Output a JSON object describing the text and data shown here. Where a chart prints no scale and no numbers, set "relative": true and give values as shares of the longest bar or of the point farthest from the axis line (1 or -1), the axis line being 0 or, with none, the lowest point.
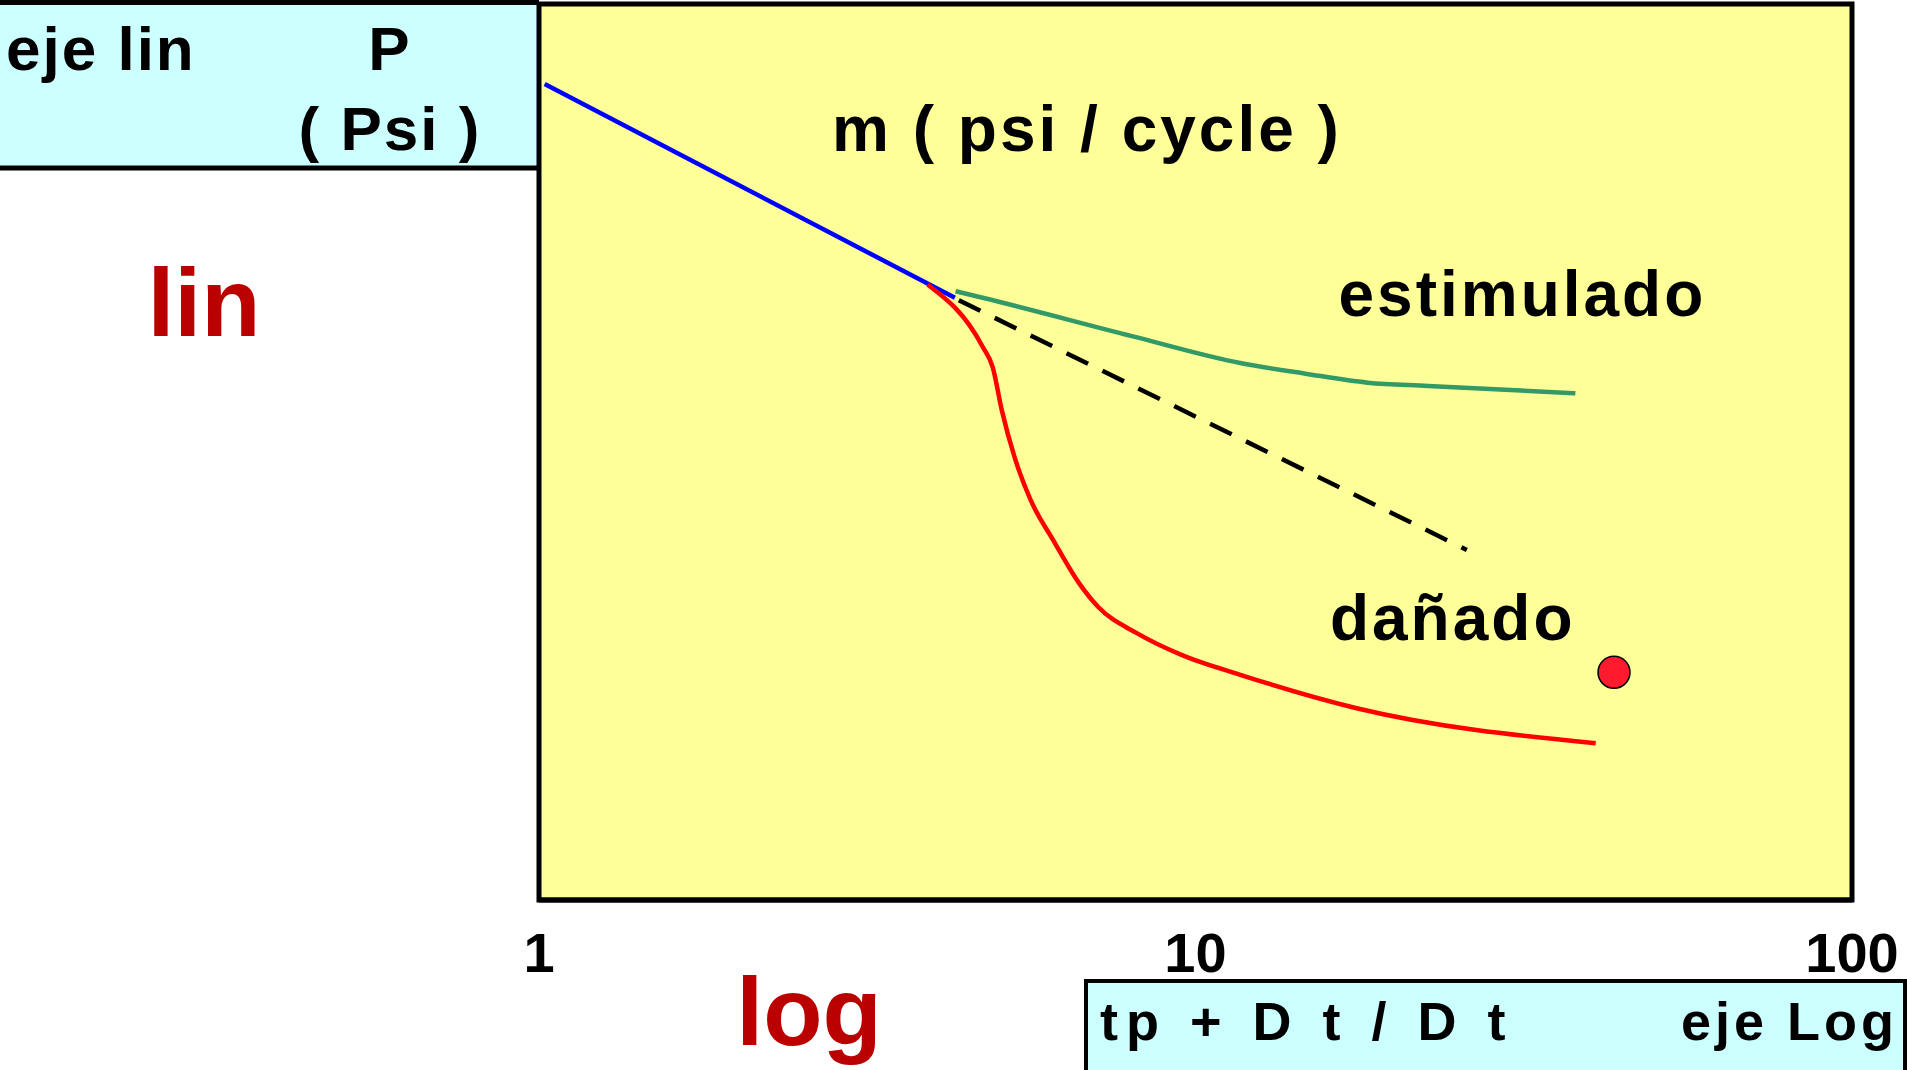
{
  "chart_data": {
    "type": "line",
    "xlabel": "tp + D t / D t",
    "ylabel": "P\n( Psi )",
    "annotations": [
      "eje lin",
      "m ( psi / cycle )",
      "lin",
      "log",
      "eje Log"
    ],
    "log": "x",
    "relative": true,
    "xlim": [
      1,
      100
    ],
    "xticks": [
      1,
      10,
      100
    ],
    "series": [
      {
        "color": "#0000ff",
        "x": [
          1.02,
          4.3
        ],
        "values": [
          1,
          0.738
        ]
      },
      {
        "name": "estimulado",
        "color": "#339966",
        "x": [
          4.31,
          4.74,
          8.0,
          11.7,
          14.7,
          18.3,
          22.6,
          37.9
        ],
        "values": [
          0.746,
          0.738,
          0.691,
          0.658,
          0.645,
          0.634,
          0.63,
          0.621
        ]
      },
      {
        "color": "#000000",
        "line_style": "dashed",
        "x": [
          4.36,
          25.9
        ],
        "values": [
          0.735,
          0.429
        ]
      },
      {
        "name": "dañado",
        "color": "#ff0000",
        "x": [
          3.91,
          4.74,
          4.91,
          5.07,
          5.3,
          5.61,
          6.07,
          6.65,
          7.11,
          8.14,
          9.54,
          11.7,
          17.6,
          40.7
        ],
        "values": [
          0.754,
          0.678,
          0.653,
          0.6,
          0.543,
          0.49,
          0.441,
          0.388,
          0.359,
          0.327,
          0.3,
          0.276,
          0.235,
          0.192
        ]
      },
      {
        "type": "scatter",
        "marker": "circle",
        "color": "#ff1a2e",
        "x": [
          43.4
        ],
        "values": [
          0.279
        ]
      }
    ]
  }
}
